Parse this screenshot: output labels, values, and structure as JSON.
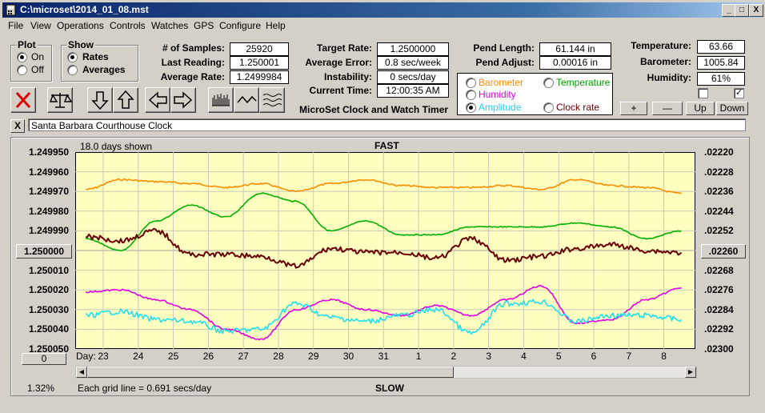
{
  "window": {
    "title": "C:\\microset\\2014_01_08.mst",
    "minimize": "_",
    "maximize": "□",
    "close": "X"
  },
  "menu": [
    "File",
    "View",
    "Operations",
    "Controls",
    "Watches",
    "GPS",
    "Configure",
    "Help"
  ],
  "plot_group": {
    "title": "Plot",
    "on": "On",
    "off": "Off",
    "selected": "On"
  },
  "show_group": {
    "title": "Show",
    "rates": "Rates",
    "averages": "Averages",
    "selected": "Rates"
  },
  "stats": {
    "samples_label": "# of Samples:",
    "samples": "25920",
    "last_label": "Last Reading:",
    "last": "1.250001",
    "avg_rate_label": "Average Rate:",
    "avg_rate": "1.2499984",
    "target_label": "Target Rate:",
    "target": "1.2500000",
    "avg_err_label": "Average Error:",
    "avg_err": "0.8 sec/week",
    "instab_label": "Instability:",
    "instab": "0 secs/day",
    "time_label": "Current Time:",
    "time": "12:00:35 AM",
    "pend_len_label": "Pend Length:",
    "pend_len": "61.144 in",
    "pend_adj_label": "Pend Adjust:",
    "pend_adj": "0.00016 in",
    "temp_label": "Temperature:",
    "temp": "63.66",
    "baro_label": "Barometer:",
    "baro": "1005.84",
    "hum_label": "Humidity:",
    "hum": "61%"
  },
  "app_caption": "MicroSet Clock and Watch Timer",
  "series_select": {
    "barometer": "Barometer",
    "temperature": "Temperature",
    "humidity": "Humidity",
    "amplitude": "Amplitude",
    "clock_rate": "Clock rate",
    "selected": "Amplitude"
  },
  "buttons": {
    "plus": "+",
    "minus": "—",
    "up": "Up",
    "down": "Down"
  },
  "checkboxes": {
    "left": false,
    "right": true
  },
  "clock_name": "Santa Barbara Courthouse Clock",
  "clock_clear": "X",
  "chart_data": {
    "type": "line",
    "top_label": "FAST",
    "bottom_label": "SLOW",
    "days_shown": "18.0 days shown",
    "grid_note": "Each grid line = 0.691 secs/day",
    "percent": "1.32%",
    "x_axis_title": "Day:",
    "x_ticks": [
      "23",
      "24",
      "25",
      "26",
      "27",
      "28",
      "29",
      "30",
      "31",
      "1",
      "2",
      "3",
      "4",
      "5",
      "6",
      "7",
      "8"
    ],
    "y_left_ticks": [
      "1.249950",
      "1.249960",
      "1.249970",
      "1.249980",
      "1.249990",
      "1.250000",
      "1.250010",
      "1.250020",
      "1.250030",
      "1.250040",
      "1.250050"
    ],
    "y_left_center_button": "1.250000",
    "y_right_ticks": [
      ".02220",
      ".02228",
      ".02236",
      ".02244",
      ".02252",
      ".02260",
      ".02268",
      ".02276",
      ".02284",
      ".02292",
      ".02300"
    ],
    "y_right_center_button": ".02260",
    "x_scroll_value": "0",
    "ylim_left": [
      1.24995,
      1.25005
    ],
    "ylim_right": [
      0.0222,
      0.023
    ],
    "grid": true,
    "colors": {
      "barometer": "#ff8c00",
      "temperature": "#00b000",
      "humidity": "#e000e0",
      "amplitude": "#20e0f0",
      "clock_rate": "#6b0000",
      "plot_bg": "#ffffc0"
    },
    "series": [
      {
        "name": "Barometer",
        "color": "#ff8c00",
        "x": [
          22.5,
          23.5,
          24.5,
          25.5,
          26.5,
          27.5,
          28.5,
          29.5,
          30.5,
          31.5,
          32.5,
          33.5,
          34.5,
          35.5,
          36.5,
          37.5,
          38.5,
          39.5
        ],
        "values": [
          1.249969,
          1.249964,
          1.249965,
          1.249966,
          1.249968,
          1.249966,
          1.24997,
          1.249966,
          1.249964,
          1.249967,
          1.249968,
          1.249968,
          1.249967,
          1.249969,
          1.249964,
          1.249967,
          1.249968,
          1.249971
        ]
      },
      {
        "name": "Temperature",
        "color": "#00b000",
        "x": [
          22.5,
          23.5,
          24.5,
          25.5,
          26.5,
          27.5,
          28.5,
          29.5,
          30.5,
          31.5,
          32.5,
          33.5,
          34.5,
          35.5,
          36.5,
          37.5,
          38.5,
          39.5
        ],
        "values": [
          1.249994,
          1.25,
          1.249985,
          1.249977,
          1.249983,
          1.249971,
          1.249975,
          1.24999,
          1.249985,
          1.249992,
          1.249992,
          1.249988,
          1.249988,
          1.249988,
          1.249986,
          1.249988,
          1.249994,
          1.24999
        ]
      },
      {
        "name": "Humidity",
        "color": "#e000e0",
        "x": [
          22.5,
          23.5,
          24.5,
          25.5,
          26.5,
          27.5,
          28.5,
          29.5,
          30.5,
          31.5,
          32.5,
          33.5,
          34.5,
          35.5,
          36.5,
          37.5,
          38.5,
          39.5
        ],
        "values": [
          1.250021,
          1.25002,
          1.250025,
          1.25003,
          1.25004,
          1.250045,
          1.25003,
          1.250025,
          1.25003,
          1.250033,
          1.250028,
          1.250033,
          1.250025,
          1.250018,
          1.250037,
          1.250035,
          1.250025,
          1.250019
        ]
      },
      {
        "name": "Amplitude",
        "color": "#20e0f0",
        "x": [
          22.5,
          23.5,
          24.5,
          25.5,
          26.5,
          27.5,
          28.5,
          29.5,
          30.5,
          31.5,
          32.5,
          33.5,
          34.5,
          35.5,
          36.5,
          37.5,
          38.5,
          39.5
        ],
        "values": [
          1.250033,
          1.250031,
          1.250035,
          1.250036,
          1.250041,
          1.25004,
          1.250027,
          1.250034,
          1.250036,
          1.250033,
          1.25003,
          1.250042,
          1.250027,
          1.250026,
          1.250036,
          1.250033,
          1.250033,
          1.250035
        ]
      },
      {
        "name": "Clock rate",
        "color": "#6b0000",
        "x": [
          22.5,
          23.5,
          24.5,
          25.5,
          26.5,
          27.5,
          28.5,
          29.5,
          30.5,
          31.5,
          32.5,
          33.5,
          34.5,
          35.5,
          36.5,
          37.5,
          38.5,
          39.5
        ],
        "values": [
          1.249993,
          1.249995,
          1.24999,
          1.250002,
          1.250002,
          1.250003,
          1.250008,
          1.249999,
          1.250001,
          1.250001,
          1.250004,
          1.249994,
          1.250005,
          1.250003,
          1.249999,
          1.249997,
          1.25,
          1.250001
        ]
      }
    ]
  }
}
